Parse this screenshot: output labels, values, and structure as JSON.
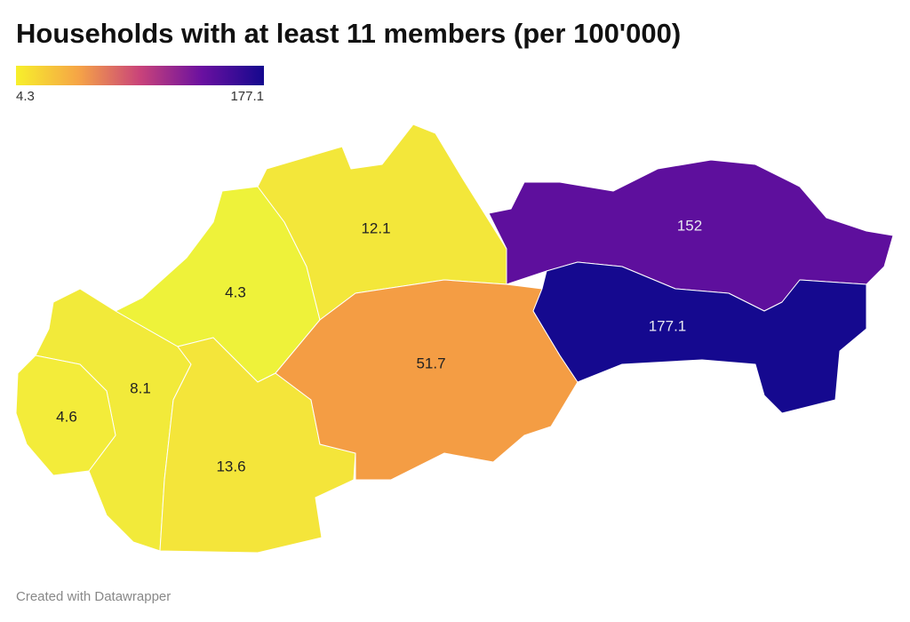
{
  "title": "Households with at least 11 members (per 100'000)",
  "legend": {
    "min": 4.3,
    "max": 177.1,
    "colors": [
      "#f7f02b",
      "#f6a546",
      "#c9437a",
      "#6a10a0",
      "#14088e"
    ]
  },
  "regions": [
    {
      "value": 4.6,
      "color": "#f3ec3a"
    },
    {
      "value": 8.1,
      "color": "#f2ea3a"
    },
    {
      "value": 4.3,
      "color": "#eef23a"
    },
    {
      "value": 12.1,
      "color": "#f3e73a"
    },
    {
      "value": 13.6,
      "color": "#f4e53a"
    },
    {
      "value": 51.7,
      "color": "#f49d44"
    },
    {
      "value": 152,
      "color": "#5e0f9d"
    },
    {
      "value": 177.1,
      "color": "#15098f"
    }
  ],
  "footer": "Created with Datawrapper"
}
